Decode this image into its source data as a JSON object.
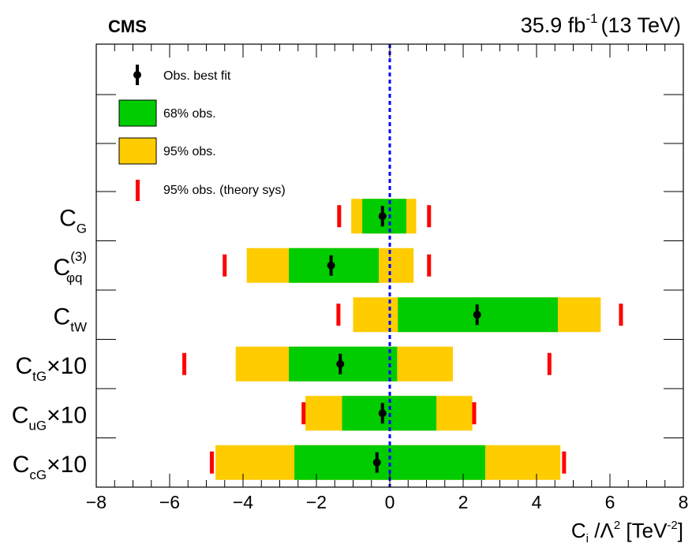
{
  "header": {
    "experiment": "CMS",
    "lumi_value": "35.9 fb",
    "lumi_exp": "-1",
    "energy": "(13 TeV)"
  },
  "legend": {
    "best_fit": "Obs. best fit",
    "band68": "68% obs.",
    "band95": "95% obs.",
    "theory": "95% obs. (theory sys)"
  },
  "colors": {
    "band68": "#00cc00",
    "band95": "#ffcc00",
    "theory": "#ff0000",
    "zero_line": "#0000ff",
    "marker": "#000000"
  },
  "chart_data": {
    "type": "interval",
    "x_axis": {
      "label_main": "C",
      "label_sub": "i",
      "label_mid": " /Λ",
      "label_sup": "2",
      "label_unit": " [TeV",
      "label_unit_sup": "-2",
      "label_end": "]",
      "range": [
        -8,
        8
      ],
      "ticks": [
        -8,
        -6,
        -4,
        -2,
        0,
        2,
        4,
        6,
        8
      ],
      "tick_labels": [
        "−8",
        "−6",
        "−4",
        "−2",
        "0",
        "2",
        "4",
        "6",
        "8"
      ]
    },
    "reference_line_x": 0,
    "rows": [
      {
        "label_main": "C",
        "label_sub": "G",
        "label_sup": "",
        "suffix": "",
        "best_fit": -0.2,
        "ci68": [
          -0.75,
          0.45
        ],
        "ci95": [
          -1.05,
          0.72
        ],
        "theory95": [
          -1.38,
          1.07
        ]
      },
      {
        "label_main": "C",
        "label_sub": "φq",
        "label_sup": "(3)",
        "suffix": "",
        "best_fit": -1.6,
        "ci68": [
          -2.75,
          -0.3
        ],
        "ci95": [
          -3.9,
          0.65
        ],
        "theory95": [
          -4.5,
          1.07
        ]
      },
      {
        "label_main": "C",
        "label_sub": "tW",
        "label_sup": "",
        "suffix": "",
        "best_fit": 2.38,
        "ci68": [
          0.22,
          4.58
        ],
        "ci95": [
          -1.0,
          5.75
        ],
        "theory95": [
          -1.4,
          6.3
        ]
      },
      {
        "label_main": "C",
        "label_sub": "tG",
        "label_sup": "",
        "suffix": "×10",
        "best_fit": -1.35,
        "ci68": [
          -2.75,
          0.2
        ],
        "ci95": [
          -4.2,
          1.72
        ],
        "theory95": [
          -5.6,
          4.35
        ]
      },
      {
        "label_main": "C",
        "label_sub": "uG",
        "label_sup": "",
        "suffix": "×10",
        "best_fit": -0.2,
        "ci68": [
          -1.3,
          1.27
        ],
        "ci95": [
          -2.3,
          2.25
        ],
        "theory95": [
          -2.35,
          2.3
        ]
      },
      {
        "label_main": "C",
        "label_sub": "cG",
        "label_sup": "",
        "suffix": "×10",
        "best_fit": -0.35,
        "ci68": [
          -2.6,
          2.6
        ],
        "ci95": [
          -4.75,
          4.65
        ],
        "theory95": [
          -4.85,
          4.75
        ]
      }
    ]
  }
}
